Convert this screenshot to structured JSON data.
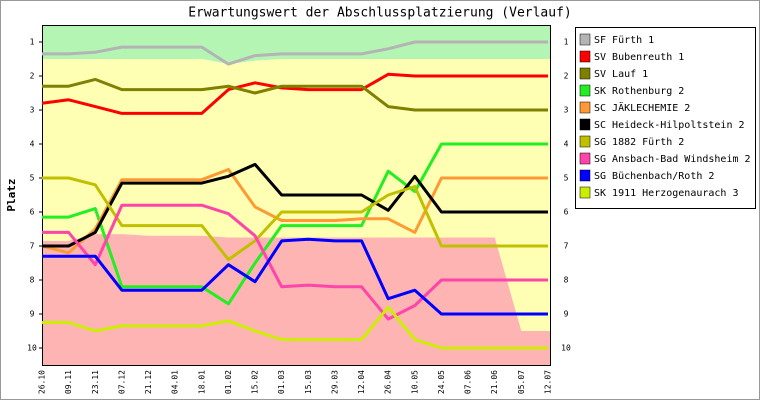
{
  "chart_data": {
    "type": "line",
    "title": "Erwartungswert der Abschlussplatzierung (Verlauf)",
    "y_label": "Platz",
    "categories": [
      "26.10",
      "09.11",
      "23.11",
      "07.12",
      "21.12",
      "04.01",
      "18.01",
      "01.02",
      "15.02",
      "01.03",
      "15.03",
      "29.03",
      "12.04",
      "26.04",
      "10.05",
      "24.05",
      "07.06",
      "21.06",
      "05.07",
      "12.07"
    ],
    "ylim": [
      0.5,
      10.5
    ],
    "y_inverted": true,
    "yticks": [
      1,
      2,
      3,
      4,
      5,
      6,
      7,
      8,
      9,
      10
    ],
    "legend": "right",
    "zones": [
      {
        "color": "#b4f5b4",
        "values": [
          1.5,
          1.5,
          1.5,
          1.5,
          1.5,
          1.5,
          1.5,
          1.65,
          1.55,
          1.5,
          1.5,
          1.5,
          1.5,
          1.5,
          1.5,
          1.5,
          1.5,
          1.5,
          1.5,
          1.5
        ]
      },
      {
        "color": "#ffffb4",
        "values": [
          6.85,
          6.85,
          6.65,
          6.65,
          6.7,
          6.7,
          6.7,
          6.75,
          6.75,
          6.75,
          6.75,
          6.75,
          6.75,
          6.75,
          6.75,
          6.75,
          6.75,
          6.75,
          9.5,
          9.5
        ]
      },
      {
        "color": "#ffb4b4"
      }
    ],
    "series": [
      {
        "name": "SF Fürth 1",
        "color": "#b4b4b4",
        "values": [
          1.35,
          1.35,
          1.3,
          1.15,
          1.15,
          1.15,
          1.15,
          1.65,
          1.4,
          1.35,
          1.35,
          1.35,
          1.35,
          1.2,
          1.0,
          1.0,
          1.0,
          1.0,
          1.0,
          1.0
        ]
      },
      {
        "name": "SV Bubenreuth 1",
        "color": "#ff0000",
        "values": [
          2.8,
          2.7,
          2.9,
          3.1,
          3.1,
          3.1,
          3.1,
          2.4,
          2.2,
          2.35,
          2.4,
          2.4,
          2.4,
          1.95,
          2.0,
          2.0,
          2.0,
          2.0,
          2.0,
          2.0
        ]
      },
      {
        "name": "SV Lauf 1",
        "color": "#808000",
        "values": [
          2.3,
          2.3,
          2.1,
          2.4,
          2.4,
          2.4,
          2.4,
          2.3,
          2.5,
          2.3,
          2.3,
          2.3,
          2.3,
          2.9,
          3.0,
          3.0,
          3.0,
          3.0,
          3.0,
          3.0
        ]
      },
      {
        "name": "SK Rothenburg 2",
        "color": "#22ee22",
        "values": [
          6.15,
          6.15,
          5.9,
          8.2,
          8.2,
          8.2,
          8.2,
          8.7,
          7.5,
          6.4,
          6.4,
          6.4,
          6.4,
          4.8,
          5.4,
          4.0,
          4.0,
          4.0,
          4.0,
          4.0
        ]
      },
      {
        "name": "SC JÄKLECHEMIE 2",
        "color": "#ff9933",
        "values": [
          7.0,
          7.2,
          6.5,
          5.05,
          5.05,
          5.05,
          5.05,
          4.75,
          5.85,
          6.25,
          6.25,
          6.25,
          6.2,
          6.2,
          6.6,
          5.0,
          5.0,
          5.0,
          5.0,
          5.0
        ]
      },
      {
        "name": "SC Heideck-Hilpoltstein 2",
        "color": "#000000",
        "values": [
          7.0,
          7.0,
          6.6,
          5.15,
          5.15,
          5.15,
          5.15,
          4.95,
          4.6,
          5.5,
          5.5,
          5.5,
          5.5,
          5.95,
          4.95,
          6.0,
          6.0,
          6.0,
          6.0,
          6.0
        ]
      },
      {
        "name": "SG 1882 Fürth 2",
        "color": "#c0c000",
        "values": [
          5.0,
          5.0,
          5.2,
          6.4,
          6.4,
          6.4,
          6.4,
          7.4,
          6.85,
          6.0,
          6.0,
          6.0,
          6.0,
          5.5,
          5.25,
          7.0,
          7.0,
          7.0,
          7.0,
          7.0
        ]
      },
      {
        "name": "SG Ansbach-Bad Windsheim 2",
        "color": "#ff44aa",
        "values": [
          6.6,
          6.6,
          7.55,
          5.8,
          5.8,
          5.8,
          5.8,
          6.05,
          6.7,
          8.2,
          8.15,
          8.2,
          8.2,
          9.15,
          8.75,
          8.0,
          8.0,
          8.0,
          8.0,
          8.0
        ]
      },
      {
        "name": "SG Büchenbach/Roth 2",
        "color": "#0000ff",
        "values": [
          7.3,
          7.3,
          7.3,
          8.3,
          8.3,
          8.3,
          8.3,
          7.55,
          8.05,
          6.85,
          6.8,
          6.85,
          6.85,
          8.55,
          8.3,
          9.0,
          9.0,
          9.0,
          9.0,
          9.0
        ]
      },
      {
        "name": "SK 1911 Herzogenaurach 3",
        "color": "#ccee00",
        "values": [
          9.25,
          9.25,
          9.5,
          9.35,
          9.35,
          9.35,
          9.35,
          9.2,
          9.5,
          9.75,
          9.75,
          9.75,
          9.75,
          8.8,
          9.75,
          10.0,
          10.0,
          10.0,
          10.0,
          10.0
        ]
      }
    ]
  }
}
